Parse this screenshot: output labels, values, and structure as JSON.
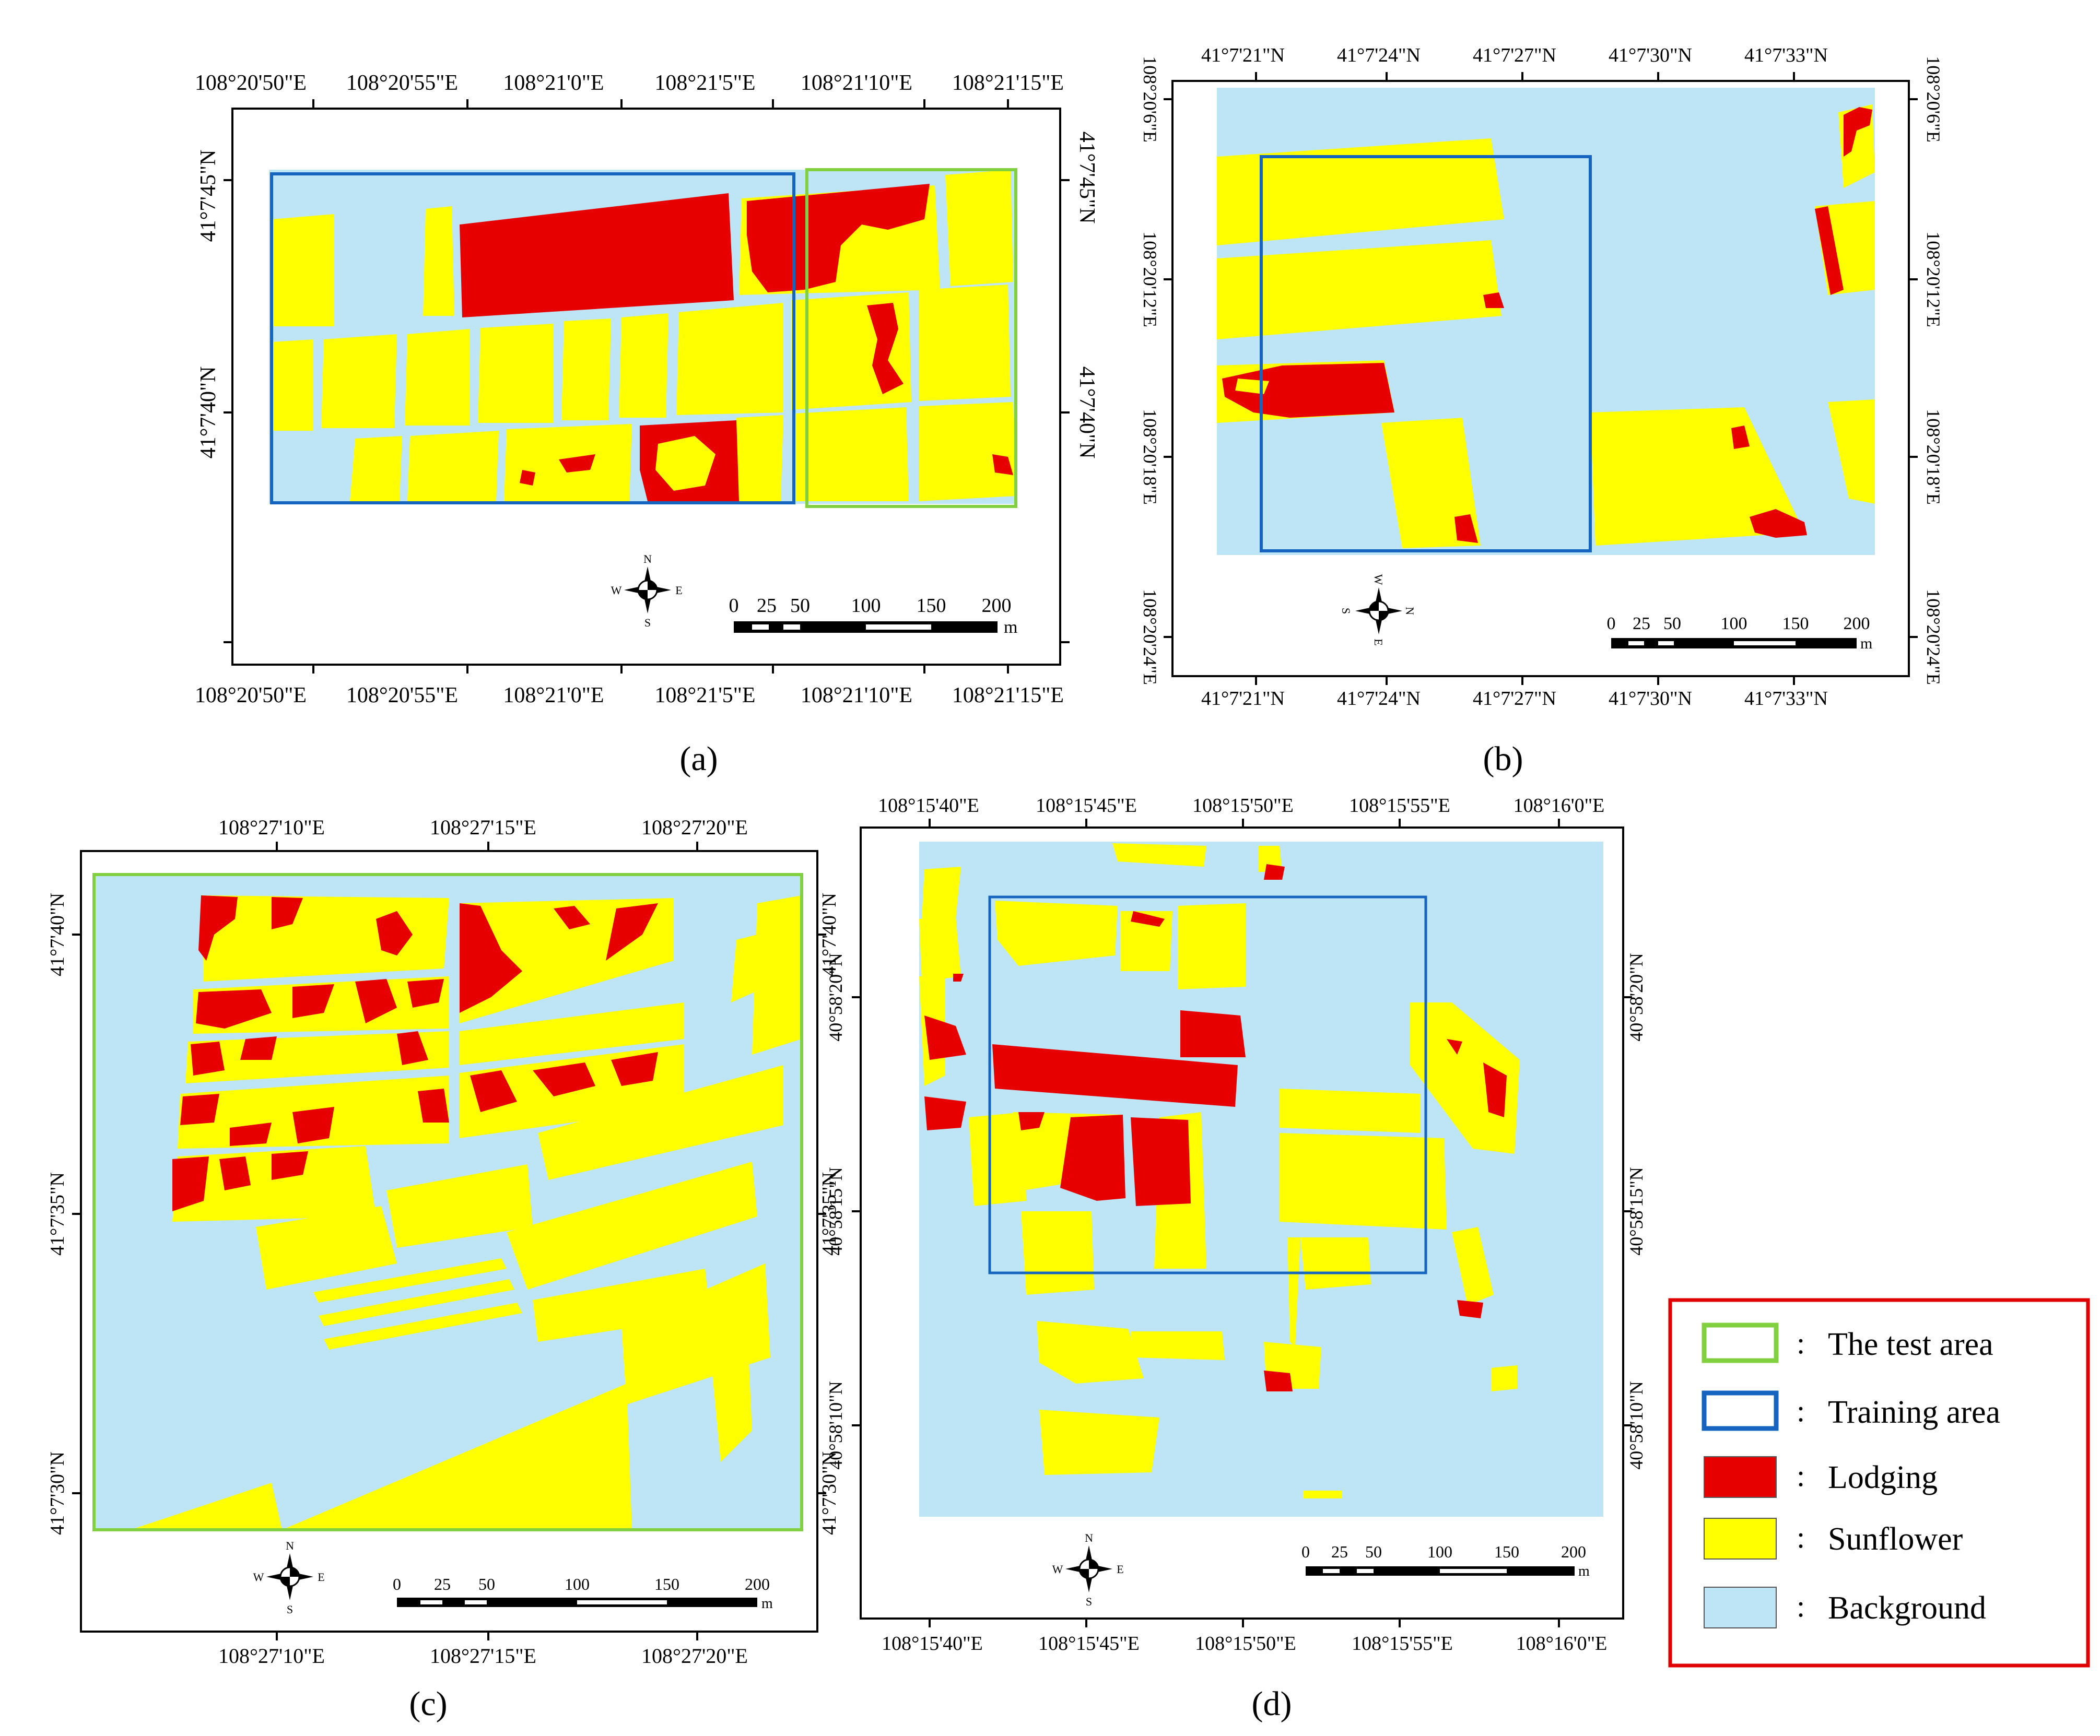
{
  "colors": {
    "background": "#BDE5F5",
    "sunflower": "#FFFF00",
    "lodging": "#E60000",
    "training_area": "#1565C0",
    "test_area": "#80D040",
    "frame": "#000000",
    "legend_border": "#E00000"
  },
  "panels": [
    {
      "id": "a",
      "caption": "(a)",
      "top_labels": [
        "108°20'50\"E",
        "108°20'55\"E",
        "108°21'0\"E",
        "108°21'5\"E",
        "108°21'10\"E",
        "108°21'15\"E"
      ],
      "bottom_labels": [
        "108°20'50\"E",
        "108°20'55\"E",
        "108°21'0\"E",
        "108°21'5\"E",
        "108°21'10\"E",
        "108°21'15\"E"
      ],
      "left_labels": [
        "41°7'45\"N",
        "41°7'40\"N"
      ],
      "right_labels": [
        "41°7'45\"N",
        "41°7'40\"N"
      ],
      "scale_labels": [
        "0",
        "25",
        "50",
        "100",
        "150",
        "200"
      ],
      "scale_unit": "m",
      "compass": {
        "n": "N",
        "s": "S",
        "e": "E",
        "w": "W"
      }
    },
    {
      "id": "b",
      "caption": "(b)",
      "top_labels": [
        "41°7'21\"N",
        "41°7'24\"N",
        "41°7'27\"N",
        "41°7'30\"N",
        "41°7'33\"N"
      ],
      "bottom_labels": [
        "41°7'21\"N",
        "41°7'24\"N",
        "41°7'27\"N",
        "41°7'30\"N",
        "41°7'33\"N"
      ],
      "left_labels": [
        "108°20'6\"E",
        "108°20'12\"E",
        "108°20'18\"E",
        "108°20'24\"E"
      ],
      "right_labels": [
        "108°20'6\"E",
        "108°20'12\"E",
        "108°20'18\"E",
        "108°20'24\"E"
      ],
      "scale_labels": [
        "0",
        "25",
        "50",
        "100",
        "150",
        "200"
      ],
      "scale_unit": "m",
      "compass": {
        "n": "N",
        "s": "S",
        "e": "E",
        "w": "W"
      }
    },
    {
      "id": "c",
      "caption": "(c)",
      "top_labels": [
        "108°27'10\"E",
        "108°27'15\"E",
        "108°27'20\"E"
      ],
      "bottom_labels": [
        "108°27'10\"E",
        "108°27'15\"E",
        "108°27'20\"E"
      ],
      "left_labels": [
        "41°7'40\"N",
        "41°7'35\"N",
        "41°7'30\"N"
      ],
      "right_labels": [
        "41°7'40\"N",
        "41°7'35\"N",
        "41°7'30\"N"
      ],
      "scale_labels": [
        "0",
        "25",
        "50",
        "100",
        "150",
        "200"
      ],
      "scale_unit": "m",
      "compass": {
        "n": "N",
        "s": "S",
        "e": "E",
        "w": "W"
      }
    },
    {
      "id": "d",
      "caption": "(d)",
      "top_labels": [
        "108°15'40\"E",
        "108°15'45\"E",
        "108°15'50\"E",
        "108°15'55\"E",
        "108°16'0\"E"
      ],
      "bottom_labels": [
        "108°15'40\"E",
        "108°15'45\"E",
        "108°15'50\"E",
        "108°15'55\"E",
        "108°16'0\"E"
      ],
      "left_labels": [
        "40°58'20\"N",
        "40°58'15\"N",
        "40°58'10\"N"
      ],
      "right_labels": [
        "40°58'20\"N",
        "40°58'15\"N",
        "40°58'10\"N"
      ],
      "scale_labels": [
        "0",
        "25",
        "50",
        "100",
        "150",
        "200"
      ],
      "scale_unit": "m",
      "compass": {
        "n": "N",
        "s": "S",
        "e": "E",
        "w": "W"
      }
    }
  ],
  "legend": {
    "items": [
      {
        "label": "The test area",
        "kind": "outline",
        "color": "#80D040"
      },
      {
        "label": "Training area",
        "kind": "outline",
        "color": "#1565C0"
      },
      {
        "label": "Lodging",
        "kind": "fill",
        "color": "#E60000"
      },
      {
        "label": "Sunflower",
        "kind": "fill",
        "color": "#FFFF00"
      },
      {
        "label": "Background",
        "kind": "fill",
        "color": "#BDE5F5"
      }
    ],
    "separator": ":"
  }
}
